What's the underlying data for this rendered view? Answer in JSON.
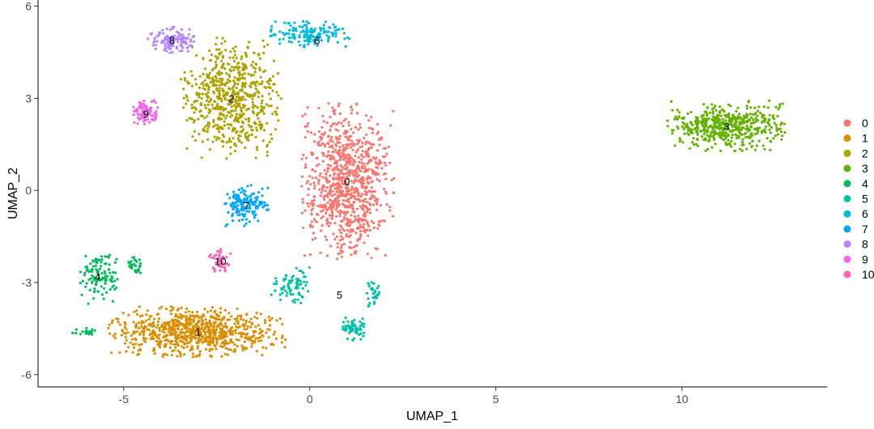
{
  "chart_data": {
    "type": "scatter",
    "title": "",
    "xlabel": "UMAP_1",
    "ylabel": "UMAP_2",
    "xlim": [
      -7.3,
      13.9
    ],
    "ylim": [
      -6.4,
      6.2
    ],
    "xticks": [
      -5,
      0,
      5,
      10
    ],
    "yticks": [
      -6,
      -3,
      0,
      3,
      6
    ],
    "grid": false,
    "legend_position": "right",
    "clusters": [
      {
        "name": "0",
        "color": "#F8766D",
        "label_pos": [
          1.0,
          0.3
        ],
        "blobs": [
          [
            1.0,
            0.3,
            1.15,
            2.3,
            900
          ]
        ]
      },
      {
        "name": "1",
        "color": "#DB8E00",
        "label_pos": [
          -3.0,
          -4.6
        ],
        "blobs": [
          [
            -3.0,
            -4.6,
            2.2,
            0.75,
            800
          ]
        ]
      },
      {
        "name": "2",
        "color": "#AEA200",
        "label_pos": [
          -2.1,
          3.0
        ],
        "blobs": [
          [
            -2.1,
            3.0,
            1.25,
            1.8,
            650
          ]
        ]
      },
      {
        "name": "3",
        "color": "#64B200",
        "label_pos": [
          11.2,
          2.1
        ],
        "blobs": [
          [
            11.2,
            2.1,
            1.45,
            0.75,
            500
          ]
        ]
      },
      {
        "name": "4",
        "color": "#00BD5C",
        "label_pos": [
          -5.7,
          -2.8
        ],
        "blobs": [
          [
            -5.7,
            -2.8,
            0.5,
            0.85,
            110
          ],
          [
            -4.7,
            -2.5,
            0.2,
            0.3,
            30
          ],
          [
            -6.0,
            -4.6,
            0.4,
            0.15,
            25
          ]
        ]
      },
      {
        "name": "5",
        "color": "#00C1A7",
        "label_pos": [
          0.8,
          -3.4
        ],
        "blobs": [
          [
            -0.5,
            -3.1,
            0.5,
            0.55,
            80
          ],
          [
            1.2,
            -4.5,
            0.35,
            0.35,
            60
          ],
          [
            1.7,
            -3.3,
            0.2,
            0.5,
            30
          ]
        ]
      },
      {
        "name": "6",
        "color": "#00BADE",
        "label_pos": [
          0.2,
          4.9
        ],
        "blobs": [
          [
            0.0,
            5.1,
            1.0,
            0.4,
            150
          ]
        ]
      },
      {
        "name": "7",
        "color": "#00A6FF",
        "label_pos": [
          -1.7,
          -0.5
        ],
        "blobs": [
          [
            -1.7,
            -0.5,
            0.6,
            0.65,
            150
          ]
        ]
      },
      {
        "name": "8",
        "color": "#B385FF",
        "label_pos": [
          -3.7,
          4.9
        ],
        "blobs": [
          [
            -3.7,
            4.9,
            0.6,
            0.4,
            120
          ]
        ]
      },
      {
        "name": "9",
        "color": "#EF67EB",
        "label_pos": [
          -4.4,
          2.5
        ],
        "blobs": [
          [
            -4.4,
            2.5,
            0.35,
            0.4,
            90
          ]
        ]
      },
      {
        "name": "10",
        "color": "#FF63B6",
        "label_pos": [
          -2.4,
          -2.3
        ],
        "blobs": [
          [
            -2.4,
            -2.3,
            0.3,
            0.35,
            45
          ]
        ]
      }
    ]
  }
}
